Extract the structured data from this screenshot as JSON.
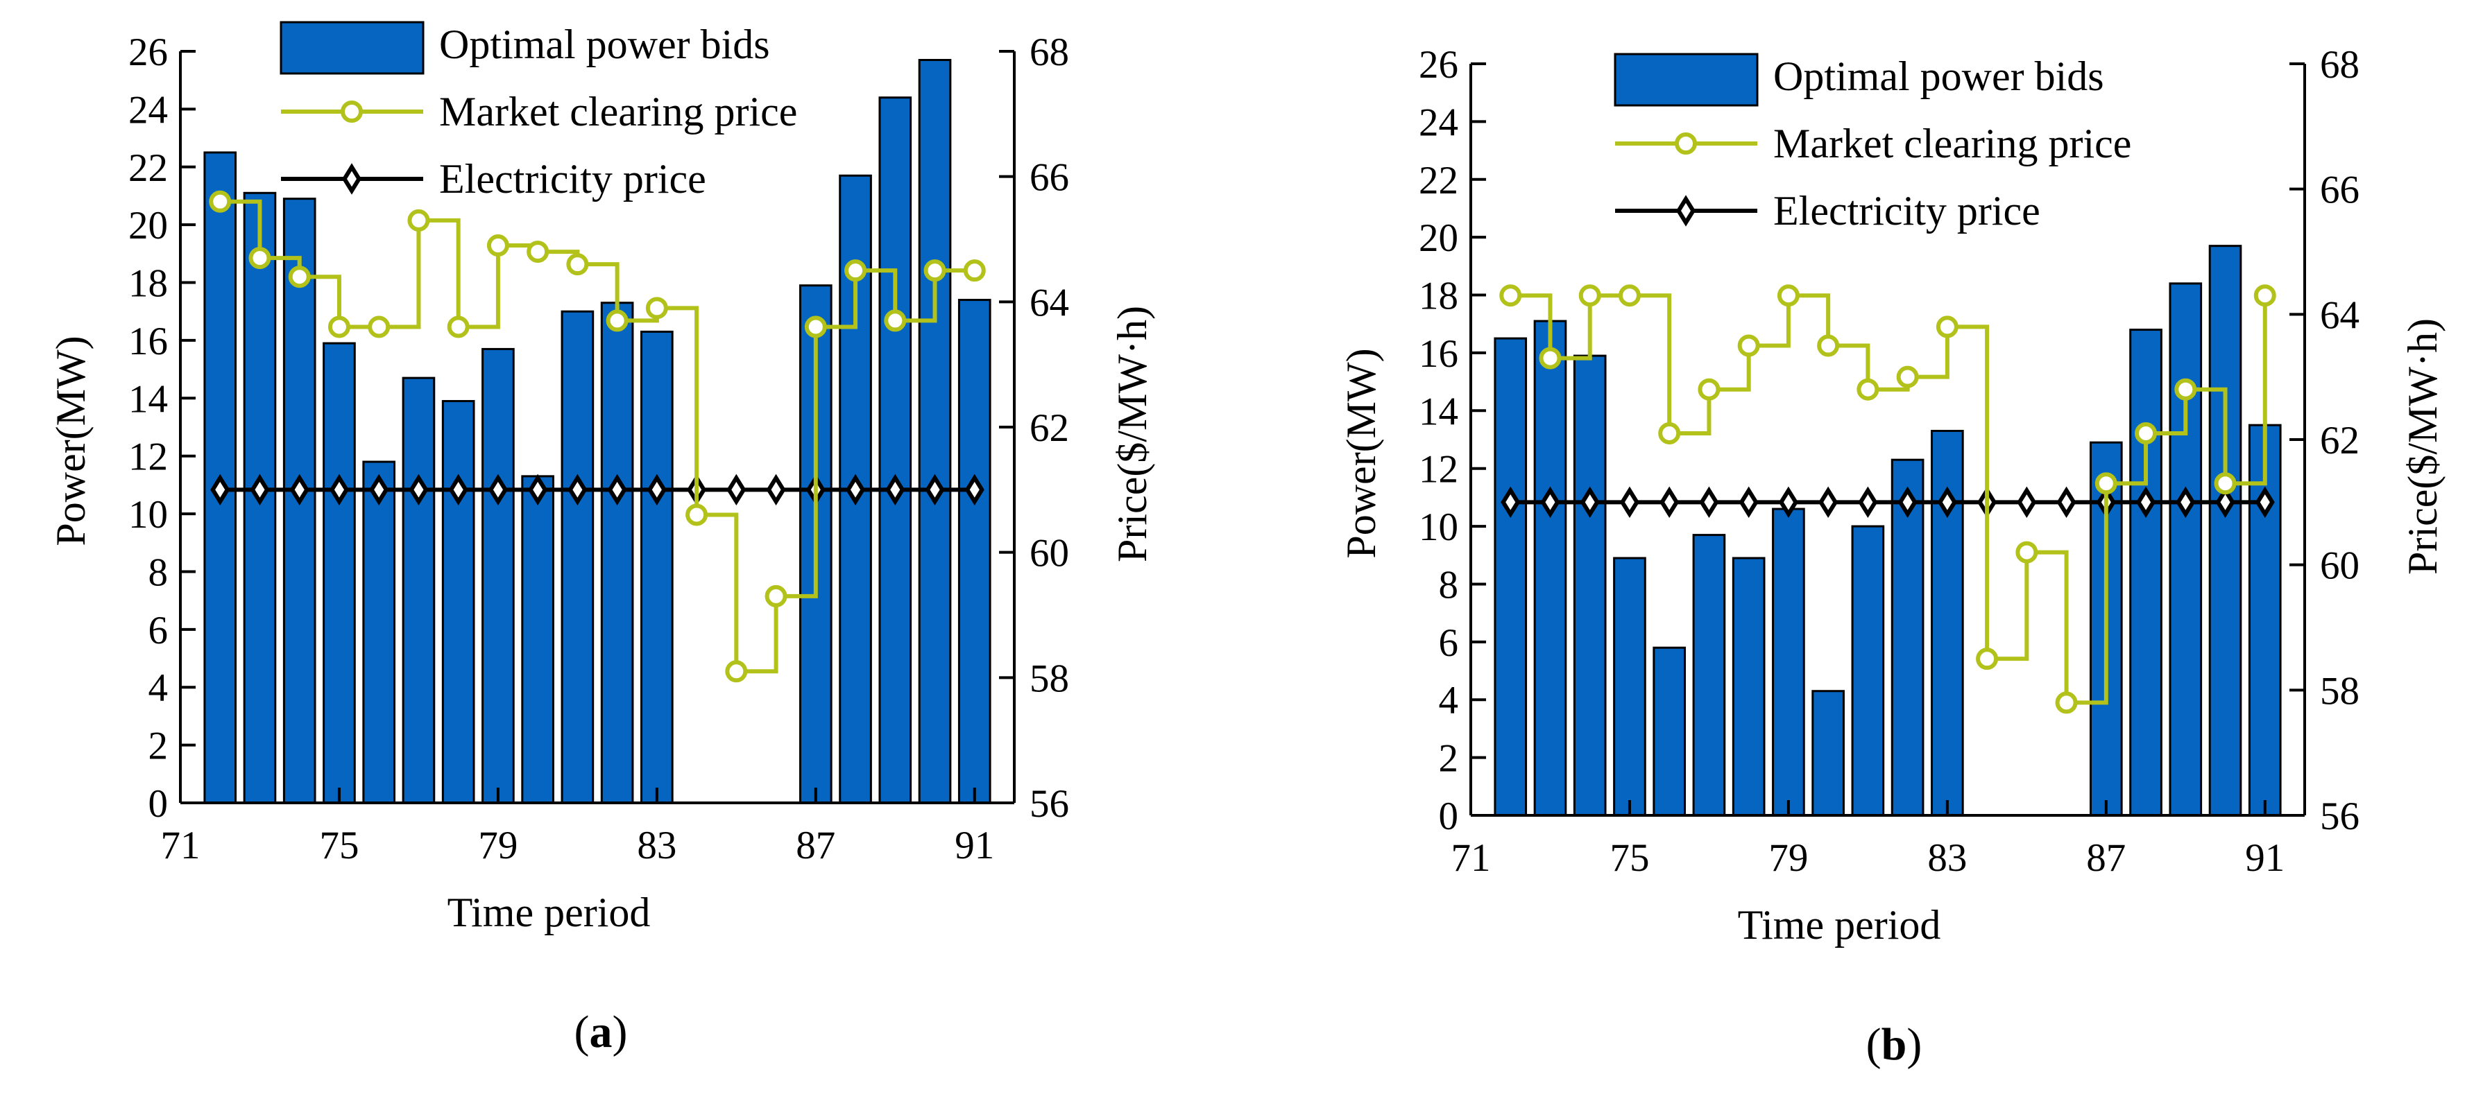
{
  "colors": {
    "bar": "#0565c0",
    "bar_edge": "#000000",
    "mcp": "#b2c21a",
    "elec": "#000000"
  },
  "panels": [
    {
      "caption": "(a)",
      "caption_letter": "a",
      "xlabel": "Time period",
      "ylabel_left": "Power(MW)",
      "ylabel_right": "Price($/MW·h)",
      "legend": [
        "Optimal power bids",
        "Market clearing price",
        "Electricity price"
      ]
    },
    {
      "caption": "(b)",
      "caption_letter": "b",
      "xlabel": "Time period",
      "ylabel_left": "Power(MW)",
      "ylabel_right": "Price($/MW·h)",
      "legend": [
        "Optimal power bids",
        "Market clearing price",
        "Electricity price"
      ]
    }
  ],
  "chart_data": [
    {
      "type": "bar",
      "panel": "a",
      "x": [
        72,
        73,
        74,
        75,
        76,
        77,
        78,
        79,
        80,
        81,
        82,
        83,
        84,
        85,
        86,
        87,
        88,
        89,
        90,
        91
      ],
      "x_ticks": [
        71,
        75,
        79,
        83,
        87,
        91
      ],
      "xlim": [
        71,
        92
      ],
      "xlabel": "Time period",
      "ylabel": "Power(MW)",
      "ylim": [
        0,
        26
      ],
      "y_ticks": [
        0,
        2,
        4,
        6,
        8,
        10,
        12,
        14,
        16,
        18,
        20,
        22,
        24,
        26
      ],
      "y2label": "Price($/MW·h)",
      "y2lim": [
        56,
        68
      ],
      "y2_ticks": [
        56,
        58,
        60,
        62,
        64,
        66,
        68
      ],
      "legend_position": "top-center",
      "series": [
        {
          "name": "Optimal power bids",
          "type": "bar",
          "axis": "left",
          "values": [
            22.5,
            21.1,
            20.9,
            15.9,
            11.8,
            14.7,
            13.9,
            15.7,
            11.3,
            17.0,
            17.3,
            16.3,
            0,
            0,
            0,
            17.9,
            21.7,
            24.4,
            25.7,
            17.4
          ]
        },
        {
          "name": "Market clearing price",
          "type": "step-line",
          "axis": "right",
          "values": [
            65.6,
            64.7,
            64.4,
            63.6,
            63.6,
            65.3,
            63.6,
            64.9,
            64.8,
            64.6,
            63.7,
            63.9,
            60.6,
            58.1,
            59.3,
            63.6,
            64.5,
            63.7,
            64.5,
            64.5
          ]
        },
        {
          "name": "Electricity price",
          "type": "line",
          "axis": "right",
          "values": [
            61,
            61,
            61,
            61,
            61,
            61,
            61,
            61,
            61,
            61,
            61,
            61,
            61,
            61,
            61,
            61,
            61,
            61,
            61,
            61
          ]
        }
      ]
    },
    {
      "type": "bar",
      "panel": "b",
      "x": [
        72,
        73,
        74,
        75,
        76,
        77,
        78,
        79,
        80,
        81,
        82,
        83,
        84,
        85,
        86,
        87,
        88,
        89,
        90,
        91
      ],
      "x_ticks": [
        71,
        75,
        79,
        83,
        87,
        91
      ],
      "xlim": [
        71,
        92
      ],
      "xlabel": "Time period",
      "ylabel": "Power(MW)",
      "ylim": [
        0,
        26
      ],
      "y_ticks": [
        0,
        2,
        4,
        6,
        8,
        10,
        12,
        14,
        16,
        18,
        20,
        22,
        24,
        26
      ],
      "y2label": "Price($/MW·h)",
      "y2lim": [
        56,
        68
      ],
      "y2_ticks": [
        56,
        58,
        60,
        62,
        64,
        66,
        68
      ],
      "legend_position": "top-center",
      "series": [
        {
          "name": "Optimal power bids",
          "type": "bar",
          "axis": "left",
          "values": [
            16.5,
            17.1,
            15.9,
            8.9,
            5.8,
            9.7,
            8.9,
            10.6,
            4.3,
            10.0,
            12.3,
            13.3,
            0,
            0,
            0,
            12.9,
            16.8,
            18.4,
            19.7,
            13.5
          ]
        },
        {
          "name": "Market clearing price",
          "type": "step-line",
          "axis": "right",
          "values": [
            64.3,
            63.3,
            64.3,
            64.3,
            62.1,
            62.8,
            63.5,
            64.3,
            63.5,
            62.8,
            63.0,
            63.8,
            58.5,
            60.2,
            57.8,
            61.3,
            62.1,
            62.8,
            61.3,
            64.3
          ]
        },
        {
          "name": "Electricity price",
          "type": "line",
          "axis": "right",
          "values": [
            61,
            61,
            61,
            61,
            61,
            61,
            61,
            61,
            61,
            61,
            61,
            61,
            61,
            61,
            61,
            61,
            61,
            61,
            61,
            61
          ]
        }
      ]
    }
  ]
}
